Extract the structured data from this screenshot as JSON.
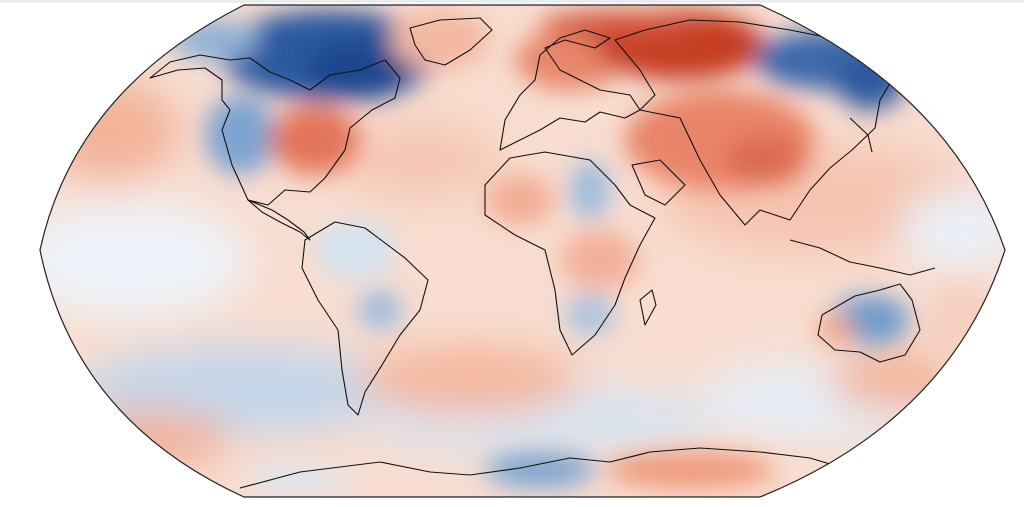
{
  "map": {
    "projection": "Robinson",
    "type": "temperature anomaly heat map",
    "colorscale": {
      "cold_strong": "#1f4e97",
      "cold_mid": "#6f9ccc",
      "cold_light": "#c7d9ee",
      "neutral": "#f7f2f0",
      "warm_light": "#f6cbb6",
      "warm_mid": "#e9866a",
      "warm_strong": "#b32b16"
    },
    "regions": [
      {
        "name": "canadian-arctic",
        "anomaly": "cold_strong"
      },
      {
        "name": "western-us",
        "anomaly": "cold_mid"
      },
      {
        "name": "eastern-us",
        "anomaly": "warm_mid"
      },
      {
        "name": "scandinavia",
        "anomaly": "warm_mid"
      },
      {
        "name": "northern-russia",
        "anomaly": "warm_strong"
      },
      {
        "name": "east-siberia",
        "anomaly": "cold_strong"
      },
      {
        "name": "china-tibet",
        "anomaly": "warm_mid"
      },
      {
        "name": "central-africa",
        "anomaly": "cold_light"
      },
      {
        "name": "eastern-australia",
        "anomaly": "cold_mid"
      },
      {
        "name": "southern-ocean",
        "anomaly": "cold_light"
      },
      {
        "name": "antarctica-east",
        "anomaly": "warm_mid"
      }
    ]
  }
}
